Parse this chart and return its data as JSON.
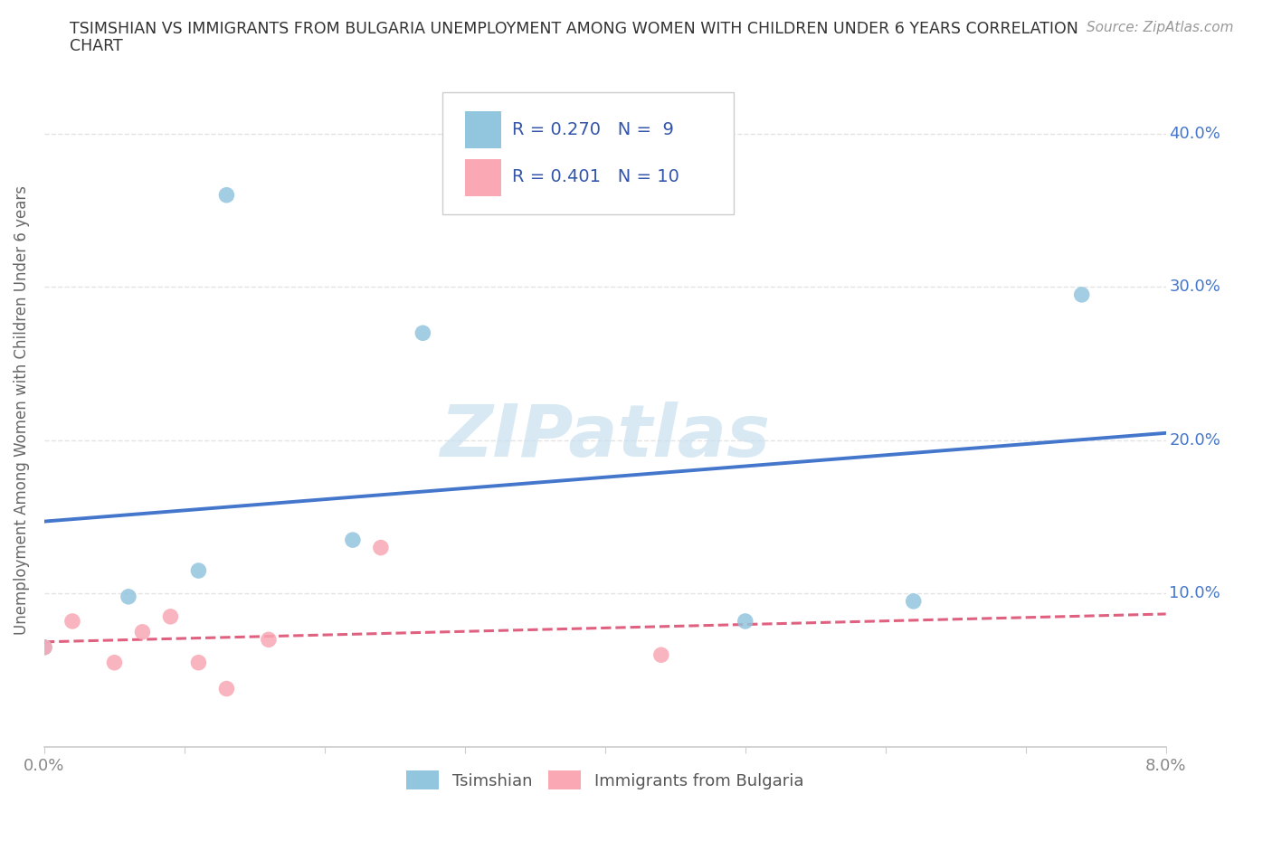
{
  "title_line1": "TSIMSHIAN VS IMMIGRANTS FROM BULGARIA UNEMPLOYMENT AMONG WOMEN WITH CHILDREN UNDER 6 YEARS CORRELATION",
  "title_line2": "CHART",
  "source_text": "Source: ZipAtlas.com",
  "ylabel": "Unemployment Among Women with Children Under 6 years",
  "xlabel": "",
  "xlim": [
    0.0,
    0.08
  ],
  "ylim": [
    0.0,
    0.44
  ],
  "xticks": [
    0.0,
    0.01,
    0.02,
    0.03,
    0.04,
    0.05,
    0.06,
    0.07,
    0.08
  ],
  "xticklabels": [
    "0.0%",
    "",
    "",
    "",
    "",
    "",
    "",
    "",
    "8.0%"
  ],
  "yticks": [
    0.1,
    0.2,
    0.3,
    0.4
  ],
  "yticklabels": [
    "10.0%",
    "20.0%",
    "30.0%",
    "40.0%"
  ],
  "tsimshian_x": [
    0.0,
    0.006,
    0.011,
    0.013,
    0.022,
    0.027,
    0.05,
    0.062,
    0.074
  ],
  "tsimshian_y": [
    0.065,
    0.098,
    0.115,
    0.36,
    0.135,
    0.27,
    0.082,
    0.095,
    0.295
  ],
  "bulgaria_x": [
    0.0,
    0.002,
    0.005,
    0.007,
    0.009,
    0.011,
    0.013,
    0.016,
    0.024,
    0.044
  ],
  "bulgaria_y": [
    0.065,
    0.082,
    0.055,
    0.075,
    0.085,
    0.055,
    0.038,
    0.07,
    0.13,
    0.06
  ],
  "tsimshian_color": "#92C5DE",
  "bulgaria_color": "#F9A8B4",
  "tsimshian_line_color": "#4477CC",
  "bulgaria_line_color": "#E06080",
  "tsimshian_R": 0.27,
  "tsimshian_N": 9,
  "bulgaria_R": 0.401,
  "bulgaria_N": 10,
  "watermark_text": "ZIPatlas",
  "watermark_color": "#C8E0F0",
  "legend_label_tsimshian": "Tsimshian",
  "legend_label_bulgaria": "Immigrants from Bulgaria",
  "background_color": "#FFFFFF",
  "grid_color": "#DDDDDD",
  "tick_label_color_right": "#4477CC",
  "tick_label_color_bottom": "#888888"
}
